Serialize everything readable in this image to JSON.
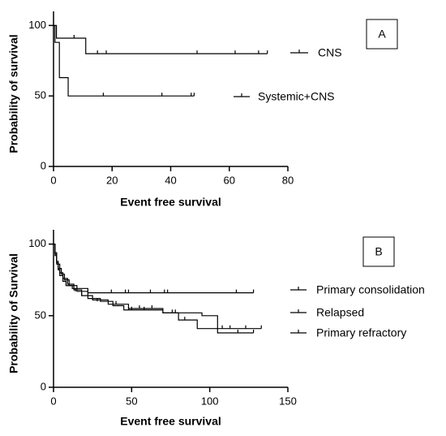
{
  "chart_data": [
    {
      "type": "step",
      "label": "A",
      "xlabel": "Event free survival",
      "ylabel": "Probability of survival",
      "xlim": [
        0,
        80
      ],
      "xticks": [
        0,
        20,
        40,
        60,
        80
      ],
      "ylim": [
        0,
        110
      ],
      "yticks": [
        0,
        50,
        100
      ],
      "series": [
        {
          "name": "CNS",
          "color": "#000000",
          "x": [
            0,
            1,
            11,
            73
          ],
          "values": [
            100,
            91,
            80,
            80
          ],
          "censored_x": [
            7,
            15,
            18,
            49,
            62,
            70,
            73
          ],
          "censored_values": [
            91,
            80,
            80,
            80,
            80,
            80,
            80
          ]
        },
        {
          "name": "Systemic+CNS",
          "color": "#000000",
          "x": [
            0,
            0.5,
            2,
            5,
            48
          ],
          "values": [
            100,
            88,
            63,
            50,
            50
          ],
          "censored_x": [
            17,
            37,
            47,
            48
          ],
          "censored_values": [
            50,
            50,
            50,
            50
          ]
        }
      ]
    },
    {
      "type": "step",
      "label": "B",
      "xlabel": "Event free survival",
      "ylabel": "Probability of Survival",
      "xlim": [
        0,
        150
      ],
      "xticks": [
        0,
        50,
        100,
        150
      ],
      "ylim": [
        0,
        110
      ],
      "yticks": [
        0,
        50,
        100
      ],
      "series": [
        {
          "name": "Primary consolidation",
          "color": "#000000",
          "x": [
            0,
            1,
            2,
            3,
            4,
            6,
            8,
            12,
            22,
            128
          ],
          "values": [
            100,
            93,
            87,
            82,
            78,
            74,
            71,
            69,
            66,
            66
          ],
          "censored_x": [
            37,
            46,
            48,
            62,
            71,
            73,
            117,
            128
          ],
          "censored_values": [
            66,
            66,
            66,
            66,
            66,
            66,
            66,
            66
          ]
        },
        {
          "name": "Relapsed",
          "color": "#000000",
          "x": [
            0,
            1,
            2,
            3,
            5,
            7,
            10,
            15,
            22,
            30,
            38,
            45,
            70,
            95,
            105,
            128
          ],
          "values": [
            100,
            94,
            88,
            83,
            79,
            75,
            71,
            67,
            62,
            60,
            57,
            54,
            52,
            50,
            38,
            38
          ],
          "censored_x": [
            14,
            28,
            48,
            50,
            58,
            76,
            78,
            118,
            128
          ],
          "censored_values": [
            67,
            60,
            54,
            54,
            54,
            52,
            52,
            38,
            38
          ]
        },
        {
          "name": "Primary refractory",
          "color": "#000000",
          "x": [
            0,
            1,
            2,
            4,
            6,
            9,
            13,
            18,
            25,
            35,
            48,
            70,
            80,
            92,
            133
          ],
          "values": [
            100,
            92,
            86,
            80,
            76,
            72,
            68,
            64,
            61,
            58,
            55,
            52,
            47,
            41,
            41
          ],
          "censored_x": [
            18,
            40,
            55,
            63,
            84,
            108,
            113,
            123,
            133
          ],
          "censored_values": [
            64,
            58,
            55,
            55,
            47,
            41,
            41,
            41,
            41
          ]
        }
      ]
    }
  ]
}
